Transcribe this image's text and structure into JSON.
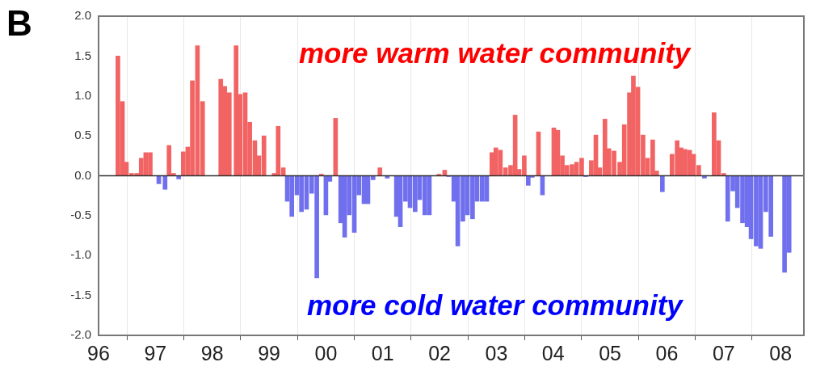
{
  "chart_data": {
    "type": "bar",
    "x": [
      1996.34,
      1996.42,
      1996.49,
      1996.58,
      1996.67,
      1996.75,
      1996.83,
      1996.91,
      1997.06,
      1997.17,
      1997.24,
      1997.32,
      1997.41,
      1997.49,
      1997.57,
      1997.65,
      1997.74,
      1997.83,
      1998.15,
      1998.22,
      1998.3,
      1998.42,
      1998.49,
      1998.58,
      1998.66,
      1998.75,
      1998.82,
      1998.91,
      1999.09,
      1999.16,
      1999.25,
      1999.32,
      1999.4,
      1999.49,
      1999.57,
      1999.66,
      1999.75,
      1999.84,
      1999.92,
      2000.0,
      2000.07,
      2000.17,
      2000.26,
      2000.33,
      2000.41,
      2000.5,
      2000.58,
      2000.67,
      2000.74,
      2000.83,
      2000.95,
      2001.08,
      2001.24,
      2001.31,
      2001.4,
      2001.48,
      2001.57,
      2001.65,
      2001.74,
      2001.82,
      2001.99,
      2002.09,
      2002.16,
      2002.25,
      2002.32,
      2002.41,
      2002.49,
      2002.58,
      2002.66,
      2002.75,
      2002.83,
      2002.92,
      2002.99,
      2003.07,
      2003.16,
      2003.25,
      2003.33,
      2003.4,
      2003.49,
      2003.56,
      2003.63,
      2003.74,
      2003.81,
      2004.01,
      2004.08,
      2004.16,
      2004.24,
      2004.33,
      2004.41,
      2004.5,
      2004.57,
      2004.67,
      2004.75,
      2004.82,
      2004.91,
      2004.98,
      2005.07,
      2005.17,
      2005.25,
      2005.34,
      2005.41,
      2005.49,
      2005.58,
      2005.66,
      2005.75,
      2005.82,
      2005.92,
      2006.09,
      2006.18,
      2006.25,
      2006.32,
      2006.4,
      2006.47,
      2006.56,
      2006.66,
      2006.83,
      2006.91,
      2007.0,
      2007.07,
      2007.16,
      2007.24,
      2007.33,
      2007.41,
      2007.48,
      2007.57,
      2007.65,
      2007.74,
      2007.83,
      2008.07,
      2008.15
    ],
    "values": [
      1.5,
      0.93,
      0.17,
      0.03,
      0.03,
      0.22,
      0.29,
      0.29,
      -0.1,
      -0.17,
      0.38,
      0.03,
      -0.04,
      0.3,
      0.36,
      1.19,
      1.63,
      0.93,
      1.21,
      1.12,
      1.04,
      1.63,
      1.02,
      1.04,
      0.67,
      0.44,
      0.25,
      0.5,
      0.03,
      0.62,
      0.1,
      -0.32,
      -0.51,
      -0.24,
      -0.45,
      -0.42,
      -0.22,
      -1.28,
      0.02,
      -0.49,
      -0.07,
      0.72,
      -0.59,
      -0.77,
      -0.49,
      -0.71,
      -0.24,
      -0.35,
      -0.35,
      -0.05,
      0.1,
      -0.03,
      -0.51,
      -0.64,
      -0.32,
      -0.4,
      -0.45,
      -0.3,
      -0.49,
      -0.49,
      0.02,
      0.07,
      -0.01,
      -0.32,
      -0.88,
      -0.57,
      -0.49,
      -0.54,
      -0.32,
      -0.32,
      -0.32,
      0.29,
      0.35,
      0.32,
      0.1,
      0.13,
      0.76,
      0.08,
      0.25,
      -0.12,
      -0.02,
      0.55,
      -0.24,
      0.6,
      0.57,
      0.25,
      0.13,
      0.14,
      0.17,
      0.22,
      -0.01,
      0.19,
      0.51,
      0.1,
      0.71,
      0.34,
      0.31,
      0.17,
      0.64,
      1.04,
      1.25,
      1.11,
      0.51,
      0.22,
      0.45,
      0.06,
      -0.2,
      0.27,
      0.44,
      0.35,
      0.33,
      0.32,
      0.27,
      0.13,
      -0.03,
      0.79,
      0.44,
      0.03,
      -0.57,
      -0.19,
      -0.4,
      -0.59,
      -0.64,
      -0.79,
      -0.88,
      -0.91,
      -0.45,
      -0.76,
      -1.21,
      -0.96
    ],
    "colors": [
      "#f26363",
      "#f26363",
      "#f26363",
      "#f26363",
      "#f26363",
      "#f26363",
      "#f26363",
      "#f26363",
      "#7070ee",
      "#7070ee",
      "#f26363",
      "#f26363",
      "#7070ee",
      "#f26363",
      "#f26363",
      "#f26363",
      "#f26363",
      "#f26363",
      "#f26363",
      "#f26363",
      "#f26363",
      "#f26363",
      "#f26363",
      "#f26363",
      "#f26363",
      "#f26363",
      "#f26363",
      "#f26363",
      "#f26363",
      "#f26363",
      "#f26363",
      "#7070ee",
      "#7070ee",
      "#7070ee",
      "#7070ee",
      "#7070ee",
      "#7070ee",
      "#7070ee",
      "#f26363",
      "#7070ee",
      "#7070ee",
      "#f26363",
      "#7070ee",
      "#7070ee",
      "#7070ee",
      "#7070ee",
      "#7070ee",
      "#7070ee",
      "#7070ee",
      "#7070ee",
      "#f26363",
      "#7070ee",
      "#7070ee",
      "#7070ee",
      "#7070ee",
      "#7070ee",
      "#7070ee",
      "#7070ee",
      "#7070ee",
      "#7070ee",
      "#f26363",
      "#f26363",
      "#7070ee",
      "#7070ee",
      "#7070ee",
      "#7070ee",
      "#7070ee",
      "#7070ee",
      "#7070ee",
      "#7070ee",
      "#7070ee",
      "#f26363",
      "#f26363",
      "#f26363",
      "#f26363",
      "#f26363",
      "#f26363",
      "#f26363",
      "#f26363",
      "#7070ee",
      "#7070ee",
      "#f26363",
      "#7070ee",
      "#f26363",
      "#f26363",
      "#f26363",
      "#f26363",
      "#f26363",
      "#f26363",
      "#f26363",
      "#7070ee",
      "#f26363",
      "#f26363",
      "#f26363",
      "#f26363",
      "#f26363",
      "#f26363",
      "#f26363",
      "#f26363",
      "#f26363",
      "#f26363",
      "#f26363",
      "#f26363",
      "#f26363",
      "#f26363",
      "#f26363",
      "#7070ee",
      "#f26363",
      "#f26363",
      "#f26363",
      "#f26363",
      "#f26363",
      "#f26363",
      "#f26363",
      "#7070ee",
      "#f26363",
      "#f26363",
      "#f26363",
      "#7070ee",
      "#7070ee",
      "#7070ee",
      "#7070ee",
      "#7070ee",
      "#7070ee",
      "#7070ee",
      "#7070ee",
      "#7070ee",
      "#7070ee",
      "#7070ee",
      "#7070ee"
    ],
    "xlim": [
      1996,
      2008.41
    ],
    "xticks": [
      {
        "value": 1996,
        "label": "96"
      },
      {
        "value": 1997,
        "label": "97"
      },
      {
        "value": 1998,
        "label": "98"
      },
      {
        "value": 1999,
        "label": "99"
      },
      {
        "value": 2000,
        "label": "00"
      },
      {
        "value": 2001,
        "label": "01"
      },
      {
        "value": 2002,
        "label": "02"
      },
      {
        "value": 2003,
        "label": "03"
      },
      {
        "value": 2004,
        "label": "04"
      },
      {
        "value": 2005,
        "label": "05"
      },
      {
        "value": 2006,
        "label": "06"
      },
      {
        "value": 2007,
        "label": "07"
      },
      {
        "value": 2008,
        "label": "08"
      }
    ],
    "ylim": [
      -2,
      2
    ],
    "yticks": [
      {
        "value": -2,
        "label": "-2.0"
      },
      {
        "value": -1.5,
        "label": "-1.5"
      },
      {
        "value": -1,
        "label": "-1.0"
      },
      {
        "value": -0.5,
        "label": "-0.5"
      },
      {
        "value": 0,
        "label": "0.0"
      },
      {
        "value": 0.5,
        "label": "0.5"
      },
      {
        "value": 1,
        "label": "1.0"
      },
      {
        "value": 1.5,
        "label": "1.5"
      },
      {
        "value": 2,
        "label": "2.0"
      }
    ],
    "grid": "x",
    "ref_lines": [
      {
        "axis": "y",
        "value": 0
      }
    ],
    "annotations": [
      "B",
      "more warm water community",
      "more cold water community"
    ]
  }
}
